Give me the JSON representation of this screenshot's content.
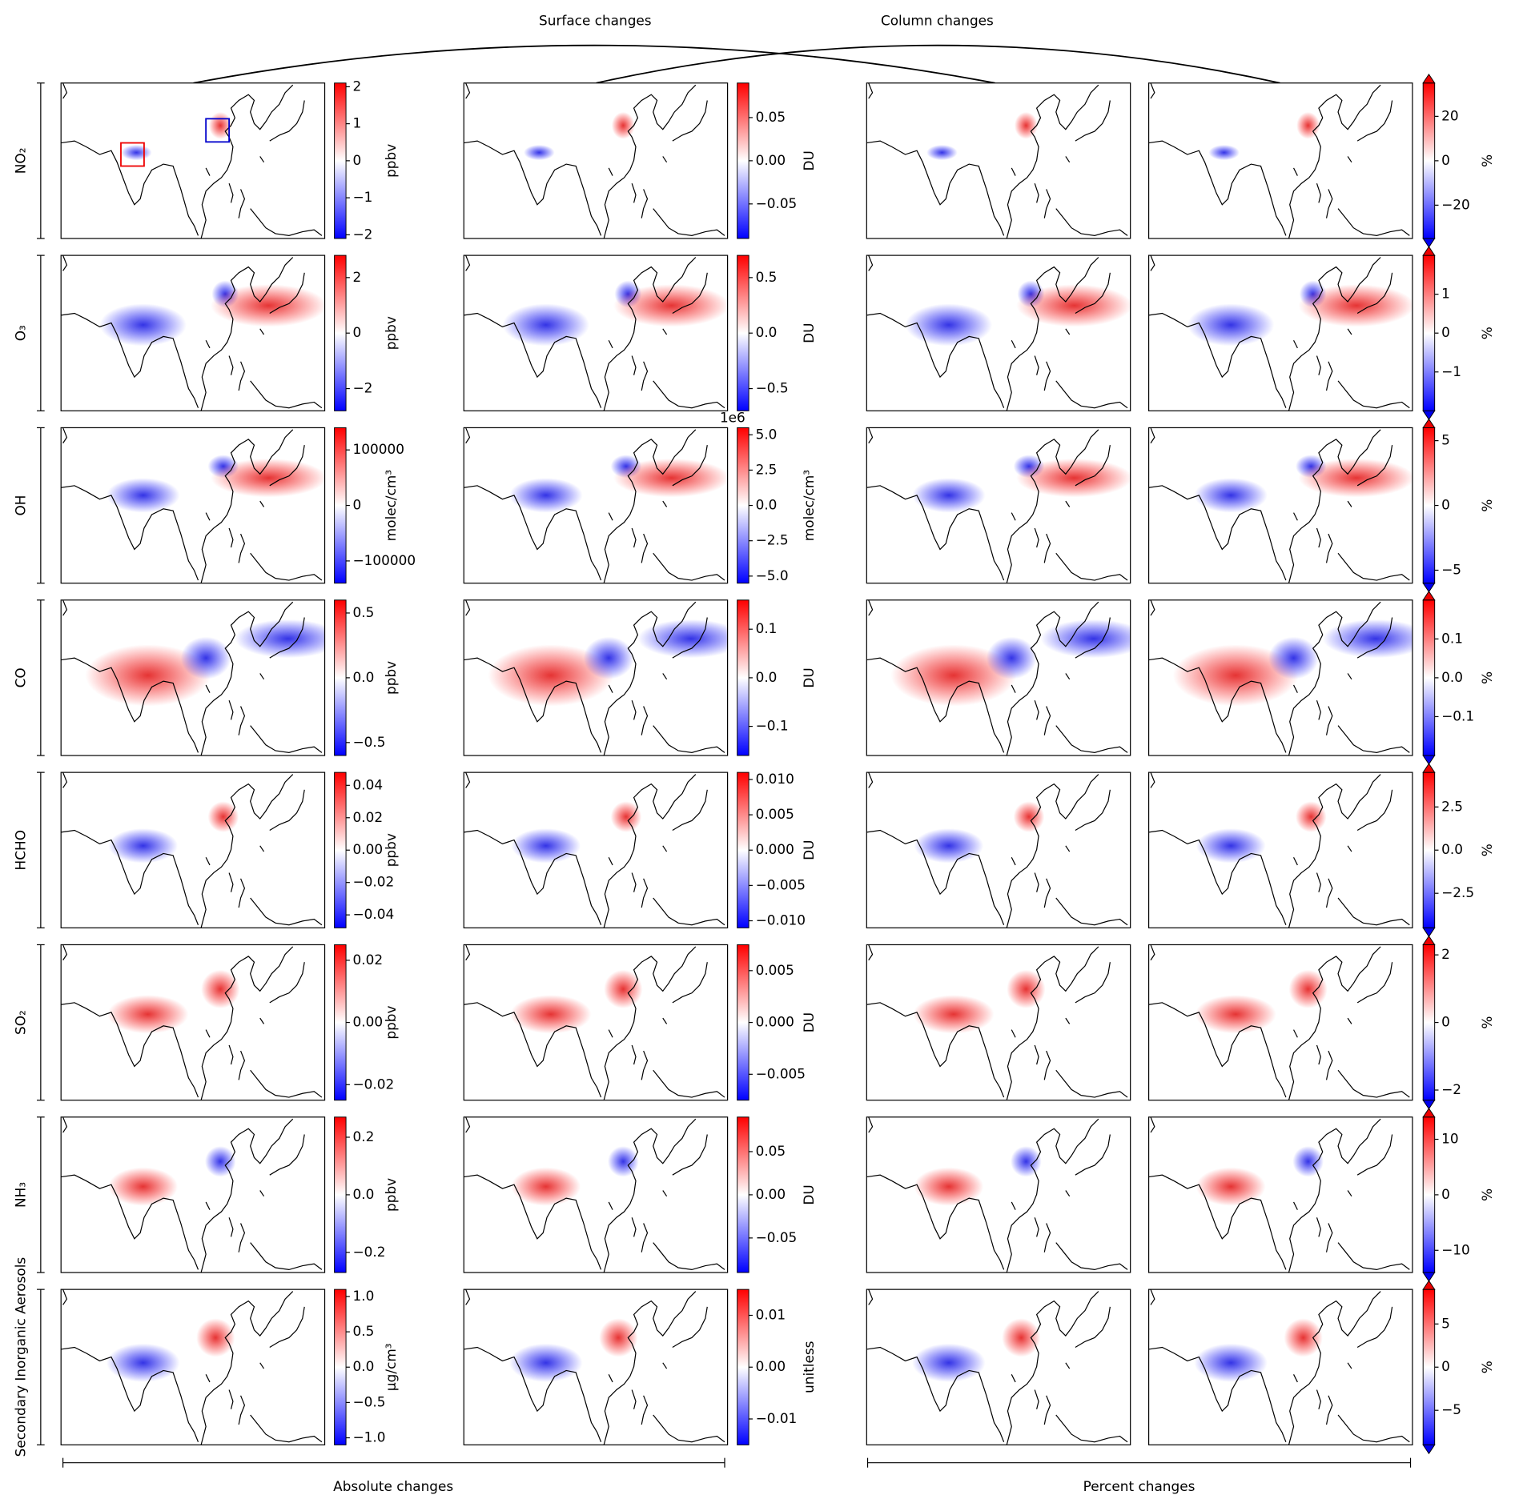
{
  "chart_data": {
    "type": "heatmap-grid",
    "top_labels": [
      "Surface changes",
      "Column changes"
    ],
    "bottom_labels": [
      "Absolute changes",
      "Percent changes"
    ],
    "rows": [
      {
        "label": "NO₂",
        "colorbars": [
          {
            "label": "ppbv",
            "ylim": [
              -2.1,
              2.1
            ],
            "yticks": [
              {
                "value": -2,
                "label": "−2"
              },
              {
                "value": -1,
                "label": "−1"
              },
              0,
              1,
              2
            ]
          },
          {
            "label": "DU",
            "ylim": [
              -0.09,
              0.09
            ],
            "yticks": [
              {
                "value": -0.05,
                "label": "−0.05"
              },
              {
                "value": 0,
                "label": "0.00"
              },
              0.05
            ]
          },
          {
            "label": "%",
            "ylim": [
              -35,
              35
            ],
            "yticks": [
              {
                "value": -20,
                "label": "−20"
              },
              0,
              20
            ]
          }
        ]
      },
      {
        "label": "O₃",
        "colorbars": [
          {
            "label": "ppbv",
            "ylim": [
              -2.8,
              2.8
            ],
            "yticks": [
              {
                "value": -2,
                "label": "−2"
              },
              0,
              2
            ]
          },
          {
            "label": "DU",
            "ylim": [
              -0.7,
              0.7
            ],
            "yticks": [
              {
                "value": -0.5,
                "label": "−0.5"
              },
              {
                "value": 0,
                "label": "0.0"
              },
              0.5
            ]
          },
          {
            "label": "%",
            "ylim": [
              -2,
              2
            ],
            "yticks": [
              {
                "value": -1,
                "label": "−1"
              },
              0,
              1
            ]
          }
        ]
      },
      {
        "label": "OH",
        "colorbars": [
          {
            "label": "molec/cm³",
            "ylim": [
              -140000,
              140000
            ],
            "yticks": [
              {
                "value": -100000,
                "label": "−100000"
              },
              0,
              100000
            ]
          },
          {
            "label": "molec/cm³",
            "offset_label": "1e6",
            "ylim": [
              -5.5,
              5.5
            ],
            "yticks": [
              {
                "value": -5,
                "label": "−5.0"
              },
              {
                "value": -2.5,
                "label": "−2.5"
              },
              {
                "value": 0,
                "label": "0.0"
              },
              2.5,
              {
                "value": 5,
                "label": "5.0"
              }
            ]
          },
          {
            "label": "%",
            "ylim": [
              -6,
              6
            ],
            "yticks": [
              {
                "value": -5,
                "label": "−5"
              },
              0,
              5
            ]
          }
        ]
      },
      {
        "label": "CO",
        "colorbars": [
          {
            "label": "ppbv",
            "ylim": [
              -0.6,
              0.6
            ],
            "yticks": [
              {
                "value": -0.5,
                "label": "−0.5"
              },
              {
                "value": 0,
                "label": "0.0"
              },
              0.5
            ]
          },
          {
            "label": "DU",
            "ylim": [
              -0.16,
              0.16
            ],
            "yticks": [
              {
                "value": -0.1,
                "label": "−0.1"
              },
              {
                "value": 0,
                "label": "0.0"
              },
              0.1
            ]
          },
          {
            "label": "%",
            "ylim": [
              -0.2,
              0.2
            ],
            "yticks": [
              {
                "value": -0.1,
                "label": "−0.1"
              },
              {
                "value": 0,
                "label": "0.0"
              },
              0.1
            ]
          }
        ]
      },
      {
        "label": "HCHO",
        "colorbars": [
          {
            "label": "ppbv",
            "ylim": [
              -0.048,
              0.048
            ],
            "yticks": [
              {
                "value": -0.04,
                "label": "−0.04"
              },
              {
                "value": -0.02,
                "label": "−0.02"
              },
              {
                "value": 0,
                "label": "0.00"
              },
              0.02,
              0.04
            ]
          },
          {
            "label": "DU",
            "ylim": [
              -0.011,
              0.011
            ],
            "yticks": [
              {
                "value": -0.01,
                "label": "−0.010"
              },
              {
                "value": -0.005,
                "label": "−0.005"
              },
              {
                "value": 0,
                "label": "0.000"
              },
              0.005,
              {
                "value": 0.01,
                "label": "0.010"
              }
            ]
          },
          {
            "label": "%",
            "ylim": [
              -4.5,
              4.5
            ],
            "yticks": [
              {
                "value": -2.5,
                "label": "−2.5"
              },
              {
                "value": 0,
                "label": "0.0"
              },
              2.5
            ]
          }
        ]
      },
      {
        "label": "SO₂",
        "colorbars": [
          {
            "label": "ppbv",
            "ylim": [
              -0.025,
              0.025
            ],
            "yticks": [
              {
                "value": -0.02,
                "label": "−0.02"
              },
              {
                "value": 0,
                "label": "0.00"
              },
              0.02
            ]
          },
          {
            "label": "DU",
            "ylim": [
              -0.0075,
              0.0075
            ],
            "yticks": [
              {
                "value": -0.005,
                "label": "−0.005"
              },
              {
                "value": 0,
                "label": "0.000"
              },
              0.005
            ]
          },
          {
            "label": "%",
            "ylim": [
              -2.3,
              2.3
            ],
            "yticks": [
              {
                "value": -2,
                "label": "−2"
              },
              0,
              2
            ]
          }
        ]
      },
      {
        "label": "NH₃",
        "colorbars": [
          {
            "label": "ppbv",
            "ylim": [
              -0.27,
              0.27
            ],
            "yticks": [
              {
                "value": -0.2,
                "label": "−0.2"
              },
              {
                "value": 0,
                "label": "0.0"
              },
              0.2
            ]
          },
          {
            "label": "DU",
            "ylim": [
              -0.09,
              0.09
            ],
            "yticks": [
              {
                "value": -0.05,
                "label": "−0.05"
              },
              {
                "value": 0,
                "label": "0.00"
              },
              0.05
            ]
          },
          {
            "label": "%",
            "ylim": [
              -14,
              14
            ],
            "yticks": [
              {
                "value": -10,
                "label": "−10"
              },
              0,
              10
            ]
          }
        ]
      },
      {
        "label": "Secondary Inorganic Aerosols",
        "colorbars": [
          {
            "label": "µg/cm³",
            "ylim": [
              -1.1,
              1.1
            ],
            "yticks": [
              {
                "value": -1,
                "label": "−1.0"
              },
              {
                "value": -0.5,
                "label": "−0.5"
              },
              {
                "value": 0,
                "label": "0.0"
              },
              0.5,
              {
                "value": 1,
                "label": "1.0"
              }
            ]
          },
          {
            "label": "unitless",
            "ylim": [
              -0.015,
              0.015
            ],
            "yticks": [
              {
                "value": -0.01,
                "label": "−0.01"
              },
              {
                "value": 0,
                "label": "0.00"
              },
              0.01
            ]
          },
          {
            "label": "%",
            "ylim": [
              -9,
              9
            ],
            "yticks": [
              {
                "value": -5,
                "label": "−5"
              },
              0,
              5
            ]
          }
        ]
      }
    ]
  }
}
